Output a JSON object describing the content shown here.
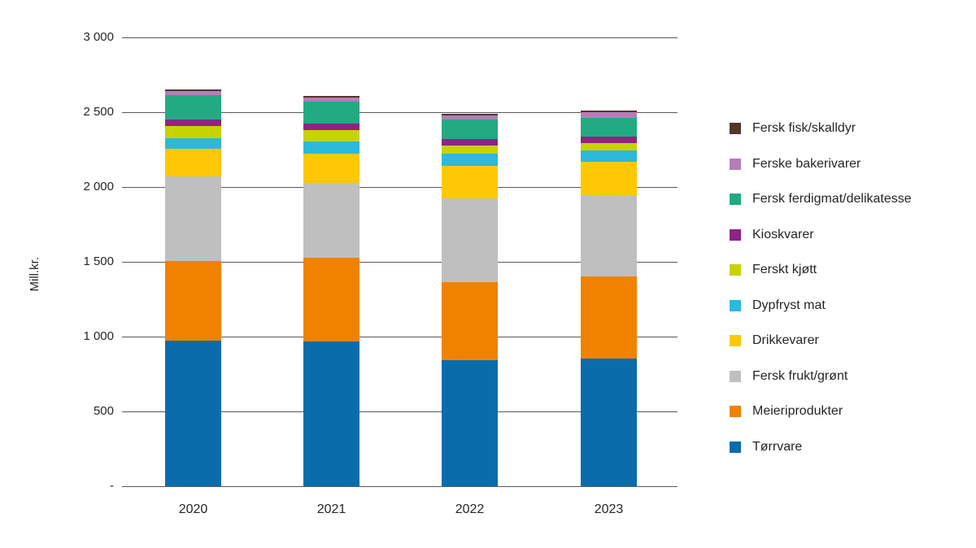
{
  "chart_data": {
    "type": "bar",
    "stacked": true,
    "title": "",
    "xlabel": "",
    "ylabel": "Mill.kr.",
    "categories": [
      "2020",
      "2021",
      "2022",
      "2023"
    ],
    "series": [
      {
        "name": "Tørrvare",
        "color": "#0b6cab",
        "values": [
          975,
          965,
          845,
          855
        ]
      },
      {
        "name": "Meieriprodukter",
        "color": "#f08200",
        "values": [
          530,
          560,
          520,
          550
        ]
      },
      {
        "name": "Fersk frukt/grønt",
        "color": "#bfbfbf",
        "values": [
          565,
          505,
          560,
          540
        ]
      },
      {
        "name": "Drikkevarer",
        "color": "#ffc805",
        "values": [
          185,
          195,
          215,
          225
        ]
      },
      {
        "name": "Dypfryst mat",
        "color": "#2cb9dc",
        "values": [
          70,
          80,
          85,
          75
        ]
      },
      {
        "name": "Ferskt kjøtt",
        "color": "#c6d300",
        "values": [
          85,
          75,
          55,
          50
        ]
      },
      {
        "name": "Kioskvarer",
        "color": "#8f2386",
        "values": [
          40,
          45,
          40,
          40
        ]
      },
      {
        "name": "Fersk ferdigmat/delikatesse",
        "color": "#22ab82",
        "values": [
          165,
          145,
          130,
          130
        ]
      },
      {
        "name": "Ferske bakerivarer",
        "color": "#b47eb8",
        "values": [
          25,
          30,
          30,
          35
        ]
      },
      {
        "name": "Fersk fisk/skalldyr",
        "color": "#52352b",
        "values": [
          10,
          10,
          10,
          10
        ]
      }
    ],
    "totals": [
      2650,
      2610,
      2490,
      2510
    ],
    "y_axis": {
      "ylim": [
        0,
        3000
      ],
      "ticks": [
        {
          "label": "3 000",
          "value": 3000
        },
        {
          "label": "2 500",
          "value": 2500
        },
        {
          "label": "2 000",
          "value": 2000
        },
        {
          "label": "1 500",
          "value": 1500
        },
        {
          "label": "1 000",
          "value": 1000
        },
        {
          "label": "500",
          "value": 500
        },
        {
          "label": "-",
          "value": 0
        }
      ]
    },
    "grid": true,
    "legend_position": "right",
    "legend_order_top_to_bottom": [
      "Fersk fisk/skalldyr",
      "Ferske bakerivarer",
      "Fersk ferdigmat/delikatesse",
      "Kioskvarer",
      "Ferskt kjøtt",
      "Dypfryst mat",
      "Drikkevarer",
      "Fersk frukt/grønt",
      "Meieriprodukter",
      "Tørrvare"
    ]
  }
}
